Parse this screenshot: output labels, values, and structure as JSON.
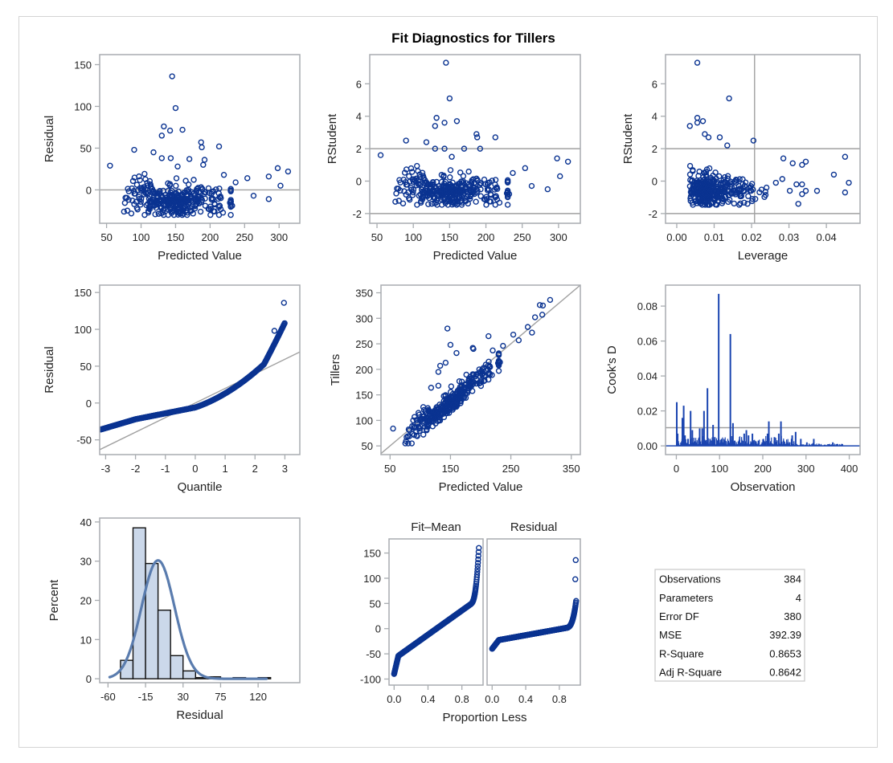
{
  "title": "Fit Diagnostics for Tillers",
  "colors": {
    "marker": "#0a3391",
    "refline": "#a0a0a0",
    "frame": "#a8acb0",
    "hist_fill": "#cbd8ea",
    "hist_edge": "#111111",
    "density": "#5a7cae",
    "cooks": "#1a44b0"
  },
  "chart_data": [
    {
      "id": "residual_vs_predicted",
      "type": "scatter",
      "xlabel": "Predicted Value",
      "ylabel": "Residual",
      "xticks": [
        50,
        100,
        150,
        200,
        250,
        300
      ],
      "yticks": [
        0,
        50,
        100,
        150
      ],
      "xlim": [
        40,
        330
      ],
      "ylim": [
        -40,
        162
      ],
      "reflines": [
        {
          "axis": "y",
          "value": 0
        }
      ],
      "outliers": [
        [
          145,
          136
        ],
        [
          150,
          98
        ],
        [
          133,
          76
        ],
        [
          142,
          71
        ],
        [
          160,
          72
        ],
        [
          130,
          65
        ],
        [
          90,
          48
        ],
        [
          118,
          45
        ],
        [
          130,
          38
        ],
        [
          143,
          38
        ],
        [
          170,
          37
        ],
        [
          187,
          57
        ],
        [
          188,
          51
        ],
        [
          213,
          52
        ],
        [
          192,
          36
        ],
        [
          55,
          29
        ],
        [
          153,
          28
        ],
        [
          190,
          30
        ],
        [
          285,
          16
        ],
        [
          298,
          26
        ],
        [
          313,
          22
        ],
        [
          302,
          5
        ],
        [
          285,
          -11
        ],
        [
          263,
          -7
        ],
        [
          254,
          14
        ],
        [
          237,
          9
        ],
        [
          232,
          -19
        ],
        [
          220,
          18
        ]
      ],
      "n_points": 384
    },
    {
      "id": "rstudent_vs_predicted",
      "type": "scatter",
      "xlabel": "Predicted Value",
      "ylabel": "RStudent",
      "xticks": [
        50,
        100,
        150,
        200,
        250,
        300
      ],
      "yticks": [
        -2,
        0,
        2,
        4,
        6
      ],
      "xlim": [
        40,
        330
      ],
      "ylim": [
        -2.6,
        7.8
      ],
      "reflines": [
        {
          "axis": "y",
          "value": 2
        },
        {
          "axis": "y",
          "value": -2
        }
      ],
      "outliers": [
        [
          145,
          7.3
        ],
        [
          150,
          5.1
        ],
        [
          132,
          3.9
        ],
        [
          143,
          3.6
        ],
        [
          160,
          3.7
        ],
        [
          130,
          3.4
        ],
        [
          187,
          2.9
        ],
        [
          188,
          2.7
        ],
        [
          213,
          2.7
        ],
        [
          90,
          2.5
        ],
        [
          118,
          2.4
        ],
        [
          130,
          2.0
        ],
        [
          143,
          2.0
        ],
        [
          170,
          2.0
        ],
        [
          192,
          2.0
        ],
        [
          55,
          1.6
        ],
        [
          153,
          1.5
        ],
        [
          298,
          1.4
        ],
        [
          313,
          1.2
        ],
        [
          302,
          0.3
        ],
        [
          285,
          -0.5
        ],
        [
          263,
          -0.3
        ],
        [
          254,
          0.8
        ],
        [
          237,
          0.5
        ],
        [
          232,
          -0.8
        ]
      ],
      "n_points": 384
    },
    {
      "id": "rstudent_vs_leverage",
      "type": "scatter",
      "xlabel": "Leverage",
      "ylabel": "RStudent",
      "xticks": [
        0.0,
        0.01,
        0.02,
        0.03,
        0.04
      ],
      "xtick_labels": [
        "0.00",
        "0.01",
        "0.02",
        "0.03",
        "0.04"
      ],
      "yticks": [
        -2,
        0,
        2,
        4,
        6
      ],
      "xlim": [
        -0.003,
        0.049
      ],
      "ylim": [
        -2.6,
        7.8
      ],
      "reflines": [
        {
          "axis": "y",
          "value": 2
        },
        {
          "axis": "y",
          "value": -2
        },
        {
          "axis": "x",
          "value": 0.0208
        }
      ],
      "outliers": [
        [
          0.0055,
          7.3
        ],
        [
          0.014,
          5.1
        ],
        [
          0.0055,
          3.9
        ],
        [
          0.0055,
          3.6
        ],
        [
          0.007,
          3.7
        ],
        [
          0.0035,
          3.4
        ],
        [
          0.0075,
          2.9
        ],
        [
          0.0085,
          2.7
        ],
        [
          0.0115,
          2.7
        ],
        [
          0.0205,
          2.5
        ],
        [
          0.0135,
          2.2
        ],
        [
          0.0285,
          1.4
        ],
        [
          0.031,
          1.1
        ],
        [
          0.0335,
          1.0
        ],
        [
          0.0345,
          1.2
        ],
        [
          0.042,
          0.4
        ],
        [
          0.045,
          1.5
        ],
        [
          0.046,
          -0.1
        ],
        [
          0.045,
          -0.7
        ],
        [
          0.0375,
          -0.6
        ],
        [
          0.0325,
          -1.4
        ],
        [
          0.0335,
          -0.8
        ],
        [
          0.0345,
          -0.6
        ],
        [
          0.0335,
          -0.2
        ],
        [
          0.032,
          -0.2
        ],
        [
          0.0265,
          -0.1
        ],
        [
          0.024,
          -0.4
        ],
        [
          0.021,
          -1.1
        ]
      ],
      "n_points": 384
    },
    {
      "id": "qq_residual",
      "type": "scatter",
      "xlabel": "Quantile",
      "ylabel": "Residual",
      "xticks": [
        -3,
        -2,
        -1,
        0,
        1,
        2,
        3
      ],
      "yticks": [
        -50,
        0,
        50,
        100,
        150
      ],
      "xlim": [
        -3.2,
        3.5
      ],
      "ylim": [
        -70,
        160
      ],
      "reference_line": {
        "intercept": 0,
        "slope": 19.8
      },
      "n_points": 384
    },
    {
      "id": "observed_vs_predicted",
      "type": "scatter",
      "xlabel": "Predicted Value",
      "ylabel": "Tillers",
      "xticks": [
        50,
        150,
        250,
        350
      ],
      "yticks": [
        50,
        100,
        150,
        200,
        250,
        300,
        350
      ],
      "xlim": [
        35,
        365
      ],
      "ylim": [
        33,
        365
      ],
      "reference_line": {
        "intercept": 0,
        "slope": 1
      },
      "outliers": [
        [
          145,
          280
        ],
        [
          150,
          248
        ],
        [
          133,
          207
        ],
        [
          142,
          213
        ],
        [
          160,
          232
        ],
        [
          130,
          195
        ],
        [
          118,
          164
        ],
        [
          130,
          168
        ],
        [
          213,
          265
        ],
        [
          187,
          242
        ],
        [
          188,
          240
        ],
        [
          55,
          84
        ],
        [
          315,
          336
        ],
        [
          298,
          326
        ],
        [
          303,
          325
        ],
        [
          302,
          307
        ],
        [
          285,
          272
        ],
        [
          263,
          257
        ],
        [
          254,
          268
        ],
        [
          237,
          246
        ],
        [
          232,
          214
        ],
        [
          220,
          237
        ],
        [
          278,
          283
        ],
        [
          290,
          302
        ]
      ],
      "n_points": 384
    },
    {
      "id": "cooks_d",
      "type": "needle",
      "xlabel": "Observation",
      "ylabel": "Cook's D",
      "xticks": [
        0,
        100,
        200,
        300,
        400
      ],
      "yticks": [
        0.0,
        0.02,
        0.04,
        0.06,
        0.08
      ],
      "ytick_labels": [
        "0.00",
        "0.02",
        "0.04",
        "0.06",
        "0.08"
      ],
      "xlim": [
        -25,
        425
      ],
      "ylim": [
        -0.005,
        0.092
      ],
      "reflines": [
        {
          "axis": "y",
          "value": 0.0104
        }
      ],
      "spikes": [
        [
          1,
          0.025
        ],
        [
          3,
          0.007
        ],
        [
          14,
          0.016
        ],
        [
          17,
          0.023
        ],
        [
          20,
          0.006
        ],
        [
          27,
          0.004
        ],
        [
          33,
          0.02
        ],
        [
          37,
          0.009
        ],
        [
          47,
          0.002
        ],
        [
          54,
          0.01
        ],
        [
          60,
          0.01
        ],
        [
          64,
          0.02
        ],
        [
          72,
          0.033
        ],
        [
          78,
          0.004
        ],
        [
          85,
          0.012
        ],
        [
          89,
          0.005
        ],
        [
          98,
          0.087
        ],
        [
          105,
          0.004
        ],
        [
          112,
          0.003
        ],
        [
          125,
          0.064
        ],
        [
          131,
          0.013
        ],
        [
          135,
          0.003
        ],
        [
          146,
          0.002
        ],
        [
          157,
          0.007
        ],
        [
          162,
          0.009
        ],
        [
          167,
          0.006
        ],
        [
          176,
          0.007
        ],
        [
          190,
          0.003
        ],
        [
          202,
          0.003
        ],
        [
          211,
          0.007
        ],
        [
          214,
          0.014
        ],
        [
          227,
          0.005
        ],
        [
          237,
          0.007
        ],
        [
          242,
          0.014
        ],
        [
          248,
          0.003
        ],
        [
          256,
          0.001
        ],
        [
          268,
          0.006
        ],
        [
          276,
          0.008
        ],
        [
          288,
          0.004
        ],
        [
          302,
          0.002
        ],
        [
          318,
          0.004
        ],
        [
          330,
          0.001
        ],
        [
          351,
          0.001
        ],
        [
          362,
          0.002
        ],
        [
          372,
          0.001
        ],
        [
          384,
          0.001
        ]
      ],
      "n_points": 384
    },
    {
      "id": "residual_histogram",
      "type": "bar",
      "xlabel": "Residual",
      "ylabel": "Percent",
      "xticks": [
        -60,
        -15,
        30,
        75,
        120
      ],
      "yticks": [
        0,
        10,
        20,
        30,
        40
      ],
      "xlim": [
        -70,
        170
      ],
      "ylim": [
        -1,
        41
      ],
      "bin_width": 15,
      "bins": [
        [
          -37.5,
          4.7
        ],
        [
          -22.5,
          38.5
        ],
        [
          -7.5,
          29.4
        ],
        [
          7.5,
          17.5
        ],
        [
          22.5,
          5.9
        ],
        [
          37.5,
          2.0
        ],
        [
          52.5,
          0.3
        ],
        [
          67.5,
          0.5
        ],
        [
          97.5,
          0.3
        ],
        [
          127.5,
          0.3
        ]
      ],
      "density": {
        "type": "normal",
        "mean": 0,
        "sd": 19.8,
        "peak_percent": 30.2,
        "range": [
          -58,
          130
        ]
      }
    },
    {
      "id": "residual_fit_spread",
      "type": "scatter",
      "panels": [
        "Fit–Mean",
        "Residual"
      ],
      "xlabel": "Proportion Less",
      "xticks": [
        0.0,
        0.4,
        0.8
      ],
      "xtick_labels": [
        "0.0",
        "0.4",
        "0.8"
      ],
      "yticks": [
        -100,
        -50,
        0,
        50,
        100,
        150
      ],
      "xlim": [
        -0.06,
        1.05
      ],
      "ylim": [
        -112,
        178
      ],
      "fit_mean_range": [
        -92,
        166
      ],
      "residual_range": [
        -30,
        136
      ],
      "n_points": 384
    },
    {
      "id": "fit_statistics",
      "type": "table",
      "rows": [
        {
          "label": "Observations",
          "value": "384"
        },
        {
          "label": "Parameters",
          "value": "4"
        },
        {
          "label": "Error DF",
          "value": "380"
        },
        {
          "label": "MSE",
          "value": "392.39"
        },
        {
          "label": "R-Square",
          "value": "0.8653"
        },
        {
          "label": "Adj R-Square",
          "value": "0.8642"
        }
      ]
    }
  ]
}
